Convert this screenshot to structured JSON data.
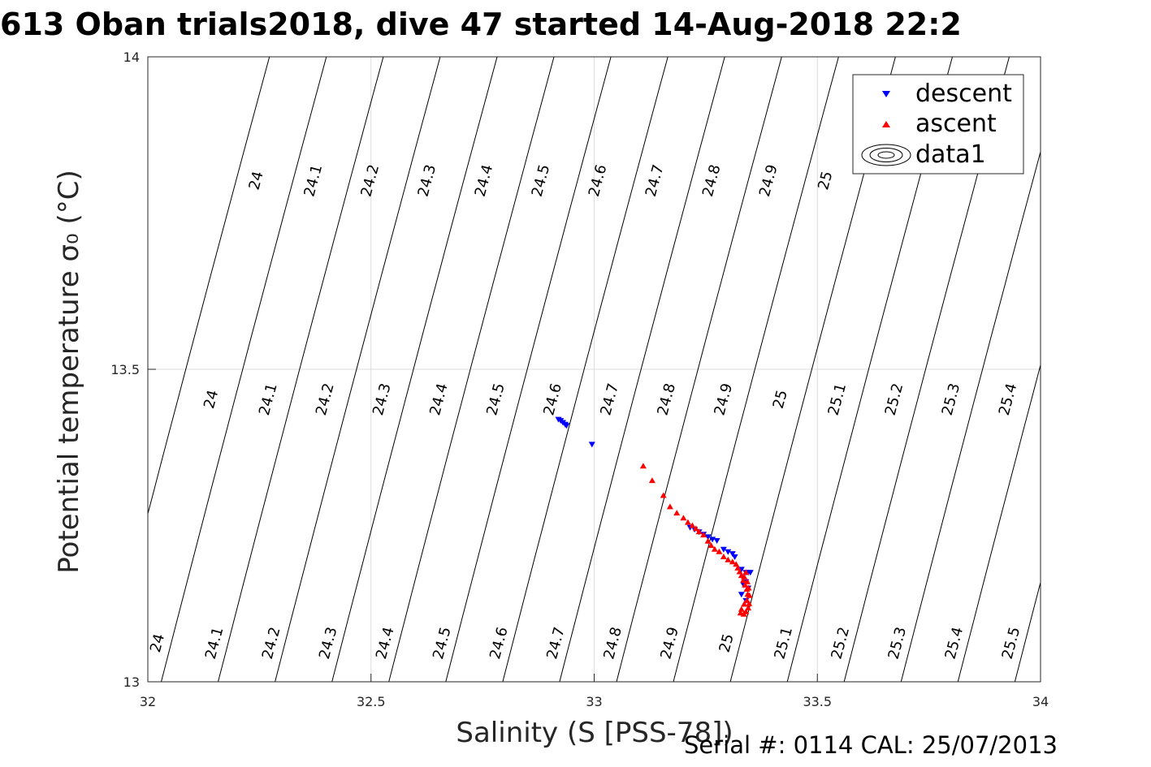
{
  "title": "613 Oban trials2018, dive 47 started 14-Aug-2018 22:2",
  "footer": "Serial #: 0114  CAL: 25/07/2013",
  "chart_data": {
    "type": "scatter",
    "title": "613 Oban trials2018, dive 47 started 14-Aug-2018 22:2",
    "xlabel": "Salinity (S [PSS-78])",
    "ylabel": "Potential temperature σ₀ (°C)",
    "xlim": [
      32,
      34
    ],
    "ylim": [
      13,
      14
    ],
    "xticks": [
      "32",
      "32.5",
      "33",
      "33.5",
      "34"
    ],
    "yticks": [
      "13",
      "13.5",
      "14"
    ],
    "grid": true,
    "legend_position": "top-right",
    "legend": [
      "descent",
      "ascent",
      "data1"
    ],
    "colors": {
      "descent": "#0000ff",
      "ascent": "#ff0000",
      "contour": "#000000",
      "grid": "#dcdcdc"
    },
    "contour_levels": [
      "24",
      "24.1",
      "24.2",
      "24.3",
      "24.4",
      "24.5",
      "24.6",
      "24.7",
      "24.8",
      "24.9",
      "25",
      "25.1",
      "25.2",
      "25.3",
      "25.4",
      "25.5"
    ],
    "series": [
      {
        "name": "descent",
        "marker": "triangle-down",
        "points": [
          [
            32.92,
            13.42
          ],
          [
            32.925,
            13.418
          ],
          [
            32.93,
            13.415
          ],
          [
            32.935,
            13.412
          ],
          [
            32.938,
            13.41
          ],
          [
            32.995,
            13.38
          ],
          [
            33.215,
            13.247
          ],
          [
            33.225,
            13.244
          ],
          [
            33.235,
            13.24
          ],
          [
            33.245,
            13.236
          ],
          [
            33.255,
            13.232
          ],
          [
            33.265,
            13.228
          ],
          [
            33.275,
            13.226
          ],
          [
            33.29,
            13.212
          ],
          [
            33.3,
            13.208
          ],
          [
            33.31,
            13.205
          ],
          [
            33.315,
            13.2
          ],
          [
            33.33,
            13.18
          ],
          [
            33.34,
            13.175
          ],
          [
            33.345,
            13.175
          ],
          [
            33.35,
            13.175
          ],
          [
            33.34,
            13.16
          ],
          [
            33.335,
            13.155
          ],
          [
            33.345,
            13.15
          ],
          [
            33.33,
            13.14
          ],
          [
            33.34,
            13.13
          ]
        ]
      },
      {
        "name": "ascent",
        "marker": "triangle-up",
        "points": [
          [
            33.11,
            13.345
          ],
          [
            33.13,
            13.322
          ],
          [
            33.155,
            13.298
          ],
          [
            33.17,
            13.28
          ],
          [
            33.185,
            13.27
          ],
          [
            33.2,
            13.262
          ],
          [
            33.21,
            13.255
          ],
          [
            33.22,
            13.25
          ],
          [
            33.228,
            13.245
          ],
          [
            33.235,
            13.24
          ],
          [
            33.245,
            13.235
          ],
          [
            33.255,
            13.225
          ],
          [
            33.262,
            13.218
          ],
          [
            33.27,
            13.212
          ],
          [
            33.28,
            13.208
          ],
          [
            33.29,
            13.2
          ],
          [
            33.3,
            13.195
          ],
          [
            33.31,
            13.192
          ],
          [
            33.318,
            13.188
          ],
          [
            33.322,
            13.182
          ],
          [
            33.326,
            13.176
          ],
          [
            33.33,
            13.17
          ],
          [
            33.334,
            13.162
          ],
          [
            33.338,
            13.155
          ],
          [
            33.342,
            13.148
          ],
          [
            33.344,
            13.14
          ],
          [
            33.342,
            13.13
          ],
          [
            33.336,
            13.124
          ],
          [
            33.33,
            13.116
          ],
          [
            33.328,
            13.11
          ],
          [
            33.335,
            13.108
          ],
          [
            33.34,
            13.112
          ],
          [
            33.345,
            13.118
          ],
          [
            33.347,
            13.125
          ],
          [
            33.348,
            13.138
          ],
          [
            33.346,
            13.15
          ],
          [
            33.343,
            13.16
          ],
          [
            33.336,
            13.168
          ],
          [
            33.34,
            13.175
          ]
        ]
      }
    ]
  }
}
